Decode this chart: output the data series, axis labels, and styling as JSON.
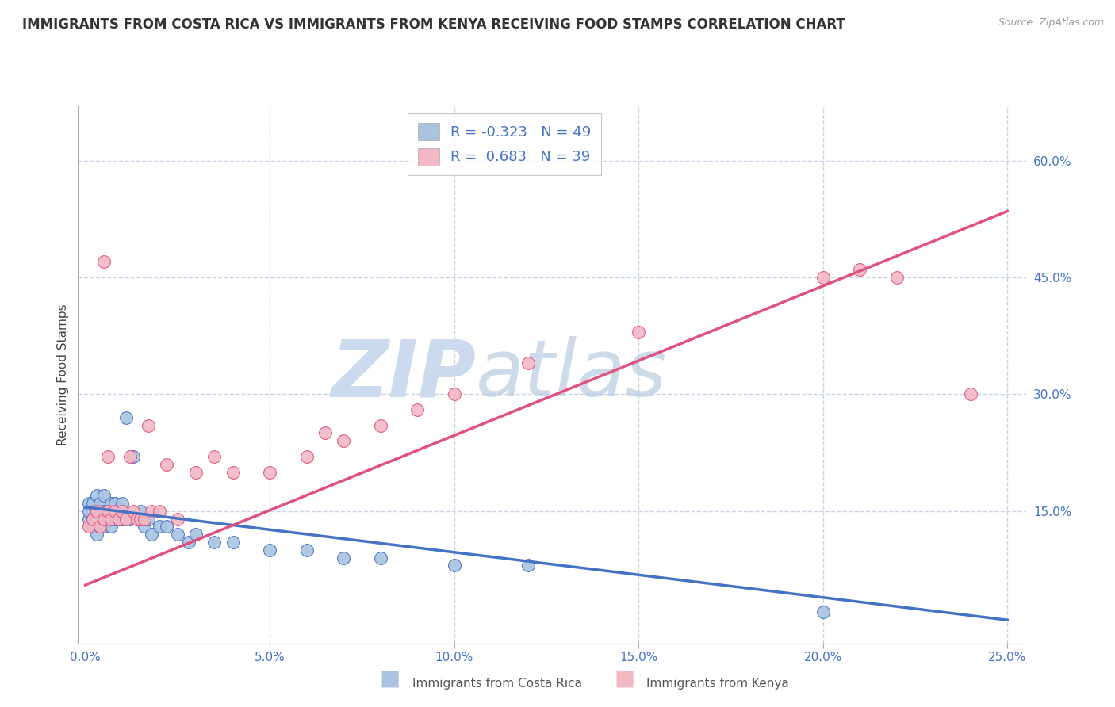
{
  "title": "IMMIGRANTS FROM COSTA RICA VS IMMIGRANTS FROM KENYA RECEIVING FOOD STAMPS CORRELATION CHART",
  "source": "Source: ZipAtlas.com",
  "xlabel_blue": "Immigrants from Costa Rica",
  "xlabel_pink": "Immigrants from Kenya",
  "ylabel": "Receiving Food Stamps",
  "r_blue": -0.323,
  "n_blue": 49,
  "r_pink": 0.683,
  "n_pink": 39,
  "xlim": [
    -0.002,
    0.255
  ],
  "ylim": [
    -0.02,
    0.67
  ],
  "yticks": [
    0.15,
    0.3,
    0.45,
    0.6
  ],
  "ytick_labels": [
    "15.0%",
    "30.0%",
    "45.0%",
    "60.0%"
  ],
  "xticks": [
    0.0,
    0.05,
    0.1,
    0.15,
    0.2,
    0.25
  ],
  "xtick_labels": [
    "0.0%",
    "5.0%",
    "10.0%",
    "15.0%",
    "20.0%",
    "25.0%"
  ],
  "color_blue": "#aac4e0",
  "color_pink": "#f2b8c6",
  "color_line_blue": "#4472c4",
  "color_line_pink": "#e05080",
  "title_fontsize": 12,
  "label_fontsize": 11,
  "tick_fontsize": 11,
  "watermark_zip": "ZIP",
  "watermark_atlas": "atlas",
  "watermark_color": "#ccdaed",
  "background_color": "#ffffff",
  "grid_color": "#c8d4e8",
  "blue_scatter_x": [
    0.001,
    0.001,
    0.001,
    0.002,
    0.002,
    0.002,
    0.003,
    0.003,
    0.003,
    0.003,
    0.004,
    0.004,
    0.004,
    0.005,
    0.005,
    0.005,
    0.006,
    0.006,
    0.007,
    0.007,
    0.007,
    0.008,
    0.008,
    0.009,
    0.009,
    0.01,
    0.01,
    0.011,
    0.012,
    0.013,
    0.014,
    0.015,
    0.016,
    0.017,
    0.018,
    0.02,
    0.022,
    0.025,
    0.028,
    0.03,
    0.035,
    0.04,
    0.05,
    0.06,
    0.07,
    0.08,
    0.1,
    0.12,
    0.2
  ],
  "blue_scatter_y": [
    0.14,
    0.15,
    0.16,
    0.13,
    0.14,
    0.16,
    0.12,
    0.14,
    0.15,
    0.17,
    0.13,
    0.15,
    0.16,
    0.13,
    0.15,
    0.17,
    0.14,
    0.15,
    0.13,
    0.15,
    0.16,
    0.14,
    0.16,
    0.14,
    0.15,
    0.14,
    0.16,
    0.27,
    0.14,
    0.22,
    0.14,
    0.15,
    0.13,
    0.14,
    0.12,
    0.13,
    0.13,
    0.12,
    0.11,
    0.12,
    0.11,
    0.11,
    0.1,
    0.1,
    0.09,
    0.09,
    0.08,
    0.08,
    0.02
  ],
  "pink_scatter_x": [
    0.001,
    0.002,
    0.003,
    0.004,
    0.005,
    0.005,
    0.006,
    0.006,
    0.007,
    0.008,
    0.009,
    0.01,
    0.011,
    0.012,
    0.013,
    0.014,
    0.015,
    0.016,
    0.017,
    0.018,
    0.02,
    0.022,
    0.025,
    0.03,
    0.035,
    0.04,
    0.05,
    0.06,
    0.065,
    0.07,
    0.08,
    0.09,
    0.1,
    0.12,
    0.15,
    0.2,
    0.21,
    0.22,
    0.24
  ],
  "pink_scatter_y": [
    0.13,
    0.14,
    0.15,
    0.13,
    0.14,
    0.47,
    0.15,
    0.22,
    0.14,
    0.15,
    0.14,
    0.15,
    0.14,
    0.22,
    0.15,
    0.14,
    0.14,
    0.14,
    0.26,
    0.15,
    0.15,
    0.21,
    0.14,
    0.2,
    0.22,
    0.2,
    0.2,
    0.22,
    0.25,
    0.24,
    0.26,
    0.28,
    0.3,
    0.34,
    0.38,
    0.45,
    0.46,
    0.45,
    0.3
  ],
  "blue_trend_x": [
    0.0,
    0.25
  ],
  "blue_trend_y": [
    0.155,
    0.01
  ],
  "pink_trend_x": [
    0.0,
    0.25
  ],
  "pink_trend_y": [
    0.055,
    0.535
  ]
}
